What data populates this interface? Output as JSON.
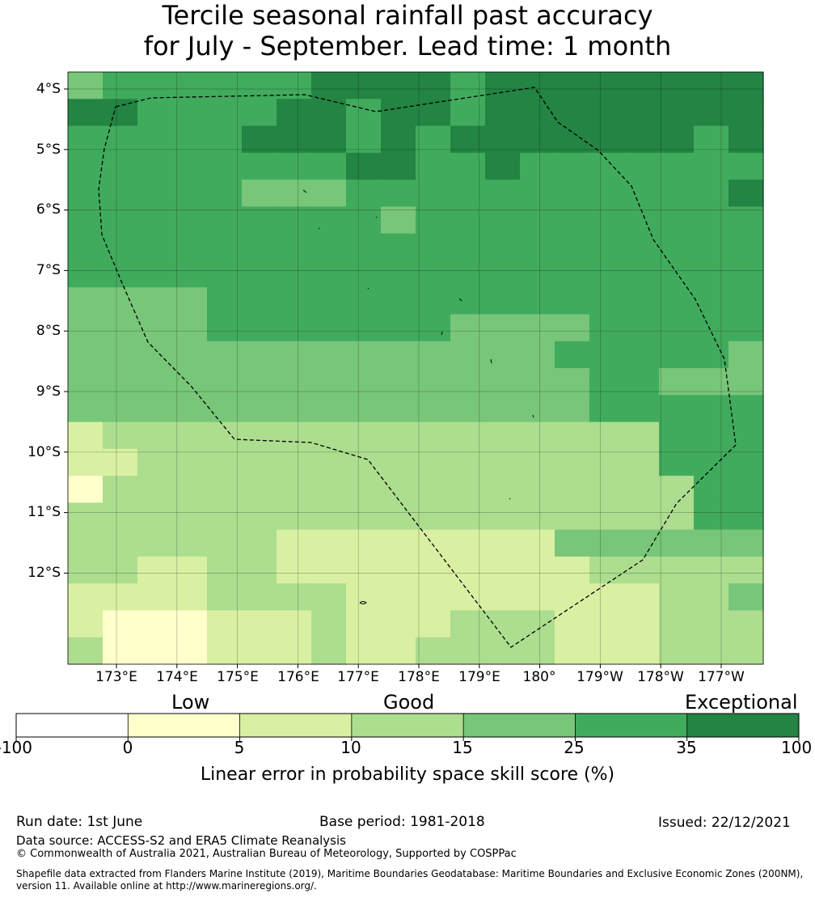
{
  "title": {
    "line1": "Tercile seasonal rainfall past accuracy",
    "line2": "for July - September. Lead time: 1 month"
  },
  "map": {
    "lat_labels": [
      "4°S",
      "5°S",
      "6°S",
      "7°S",
      "8°S",
      "9°S",
      "10°S",
      "11°S",
      "12°S"
    ],
    "lon_labels": [
      "173°E",
      "174°E",
      "175°E",
      "176°E",
      "177°E",
      "178°E",
      "179°E",
      "180°",
      "179°W",
      "178°W",
      "177°W"
    ],
    "grid_classes": [
      [
        4,
        5,
        5,
        5,
        5,
        5,
        5,
        6,
        6,
        6,
        6,
        5,
        6,
        6,
        6,
        6,
        6,
        6,
        6,
        6
      ],
      [
        6,
        6,
        5,
        5,
        5,
        5,
        6,
        6,
        5,
        6,
        6,
        5,
        6,
        6,
        6,
        6,
        6,
        6,
        6,
        6
      ],
      [
        5,
        5,
        5,
        5,
        5,
        6,
        6,
        6,
        5,
        6,
        5,
        6,
        6,
        6,
        6,
        6,
        6,
        6,
        5,
        6
      ],
      [
        5,
        5,
        5,
        5,
        5,
        5,
        5,
        5,
        6,
        6,
        5,
        5,
        6,
        5,
        5,
        5,
        5,
        5,
        5,
        5
      ],
      [
        5,
        5,
        5,
        5,
        5,
        4,
        4,
        4,
        5,
        5,
        5,
        5,
        5,
        5,
        5,
        5,
        5,
        5,
        5,
        6
      ],
      [
        5,
        5,
        5,
        5,
        5,
        5,
        5,
        5,
        5,
        4,
        5,
        5,
        5,
        5,
        5,
        5,
        5,
        5,
        5,
        5
      ],
      [
        5,
        5,
        5,
        5,
        5,
        5,
        5,
        5,
        5,
        5,
        5,
        5,
        5,
        5,
        5,
        5,
        5,
        5,
        5,
        5
      ],
      [
        5,
        5,
        5,
        5,
        5,
        5,
        5,
        5,
        5,
        5,
        5,
        5,
        5,
        5,
        5,
        5,
        5,
        5,
        5,
        5
      ],
      [
        4,
        4,
        4,
        4,
        5,
        5,
        5,
        5,
        5,
        5,
        5,
        5,
        5,
        5,
        5,
        5,
        5,
        5,
        5,
        5
      ],
      [
        4,
        4,
        4,
        4,
        5,
        5,
        5,
        5,
        5,
        5,
        5,
        4,
        4,
        4,
        4,
        5,
        5,
        5,
        5,
        5
      ],
      [
        4,
        4,
        4,
        4,
        4,
        4,
        4,
        4,
        4,
        4,
        4,
        4,
        4,
        4,
        5,
        5,
        5,
        5,
        5,
        4
      ],
      [
        4,
        4,
        4,
        4,
        4,
        4,
        4,
        4,
        4,
        4,
        4,
        4,
        4,
        4,
        4,
        5,
        5,
        4,
        4,
        4
      ],
      [
        4,
        4,
        4,
        4,
        4,
        4,
        4,
        4,
        4,
        4,
        4,
        4,
        4,
        4,
        4,
        5,
        5,
        5,
        5,
        5
      ],
      [
        2,
        3,
        3,
        3,
        3,
        3,
        3,
        3,
        3,
        3,
        3,
        3,
        3,
        3,
        3,
        3,
        3,
        5,
        5,
        5
      ],
      [
        2,
        2,
        3,
        3,
        3,
        3,
        3,
        3,
        3,
        3,
        3,
        3,
        3,
        3,
        3,
        3,
        3,
        5,
        5,
        5
      ],
      [
        1,
        3,
        3,
        3,
        3,
        3,
        3,
        3,
        3,
        3,
        3,
        3,
        3,
        3,
        3,
        3,
        3,
        3,
        5,
        5
      ],
      [
        3,
        3,
        3,
        3,
        3,
        3,
        3,
        3,
        3,
        3,
        3,
        3,
        3,
        3,
        3,
        3,
        3,
        3,
        5,
        5
      ],
      [
        3,
        3,
        3,
        3,
        3,
        3,
        2,
        2,
        2,
        2,
        2,
        2,
        2,
        2,
        4,
        4,
        4,
        4,
        4,
        4
      ],
      [
        3,
        3,
        2,
        2,
        3,
        3,
        2,
        2,
        2,
        2,
        2,
        2,
        2,
        2,
        2,
        3,
        3,
        3,
        3,
        3
      ],
      [
        2,
        2,
        2,
        2,
        3,
        3,
        3,
        3,
        2,
        2,
        2,
        2,
        2,
        2,
        2,
        2,
        2,
        3,
        3,
        4
      ],
      [
        2,
        1,
        1,
        1,
        2,
        2,
        2,
        3,
        2,
        2,
        2,
        3,
        3,
        3,
        2,
        2,
        2,
        3,
        3,
        3
      ],
      [
        3,
        1,
        1,
        1,
        2,
        2,
        2,
        3,
        2,
        2,
        3,
        3,
        3,
        3,
        2,
        2,
        2,
        3,
        3,
        3
      ]
    ],
    "colors": [
      "#ffffff",
      "#ffffcc",
      "#d9f0a3",
      "#addd8e",
      "#78c679",
      "#41ab5d",
      "#238443"
    ]
  },
  "colorbar": {
    "tick_labels": [
      "-100",
      "0",
      "5",
      "10",
      "15",
      "25",
      "35",
      "100"
    ],
    "category_labels": [
      "Low",
      "Good",
      "Exceptional"
    ],
    "axis_label": "Linear error in probability space skill score (%)"
  },
  "footer": {
    "run_date": "Run date: 1st June",
    "base_period": "Base period: 1981-2018",
    "issued": "Issued: 22/12/2021",
    "data_source": "Data source: ACCESS-S2 and ERA5 Climate Reanalysis",
    "copyright": "© Commonwealth of Australia 2021, Australian Bureau of Meteorology, Supported by COSPPac",
    "shapefile_line1": "Shapefile data extracted from Flanders Marine Institute (2019), Maritime Boundaries Geodatabase: Maritime Boundaries and Exclusive Economic Zones (200NM),",
    "shapefile_line2": "version 11. Available online at http://www.marineregions.org/."
  }
}
